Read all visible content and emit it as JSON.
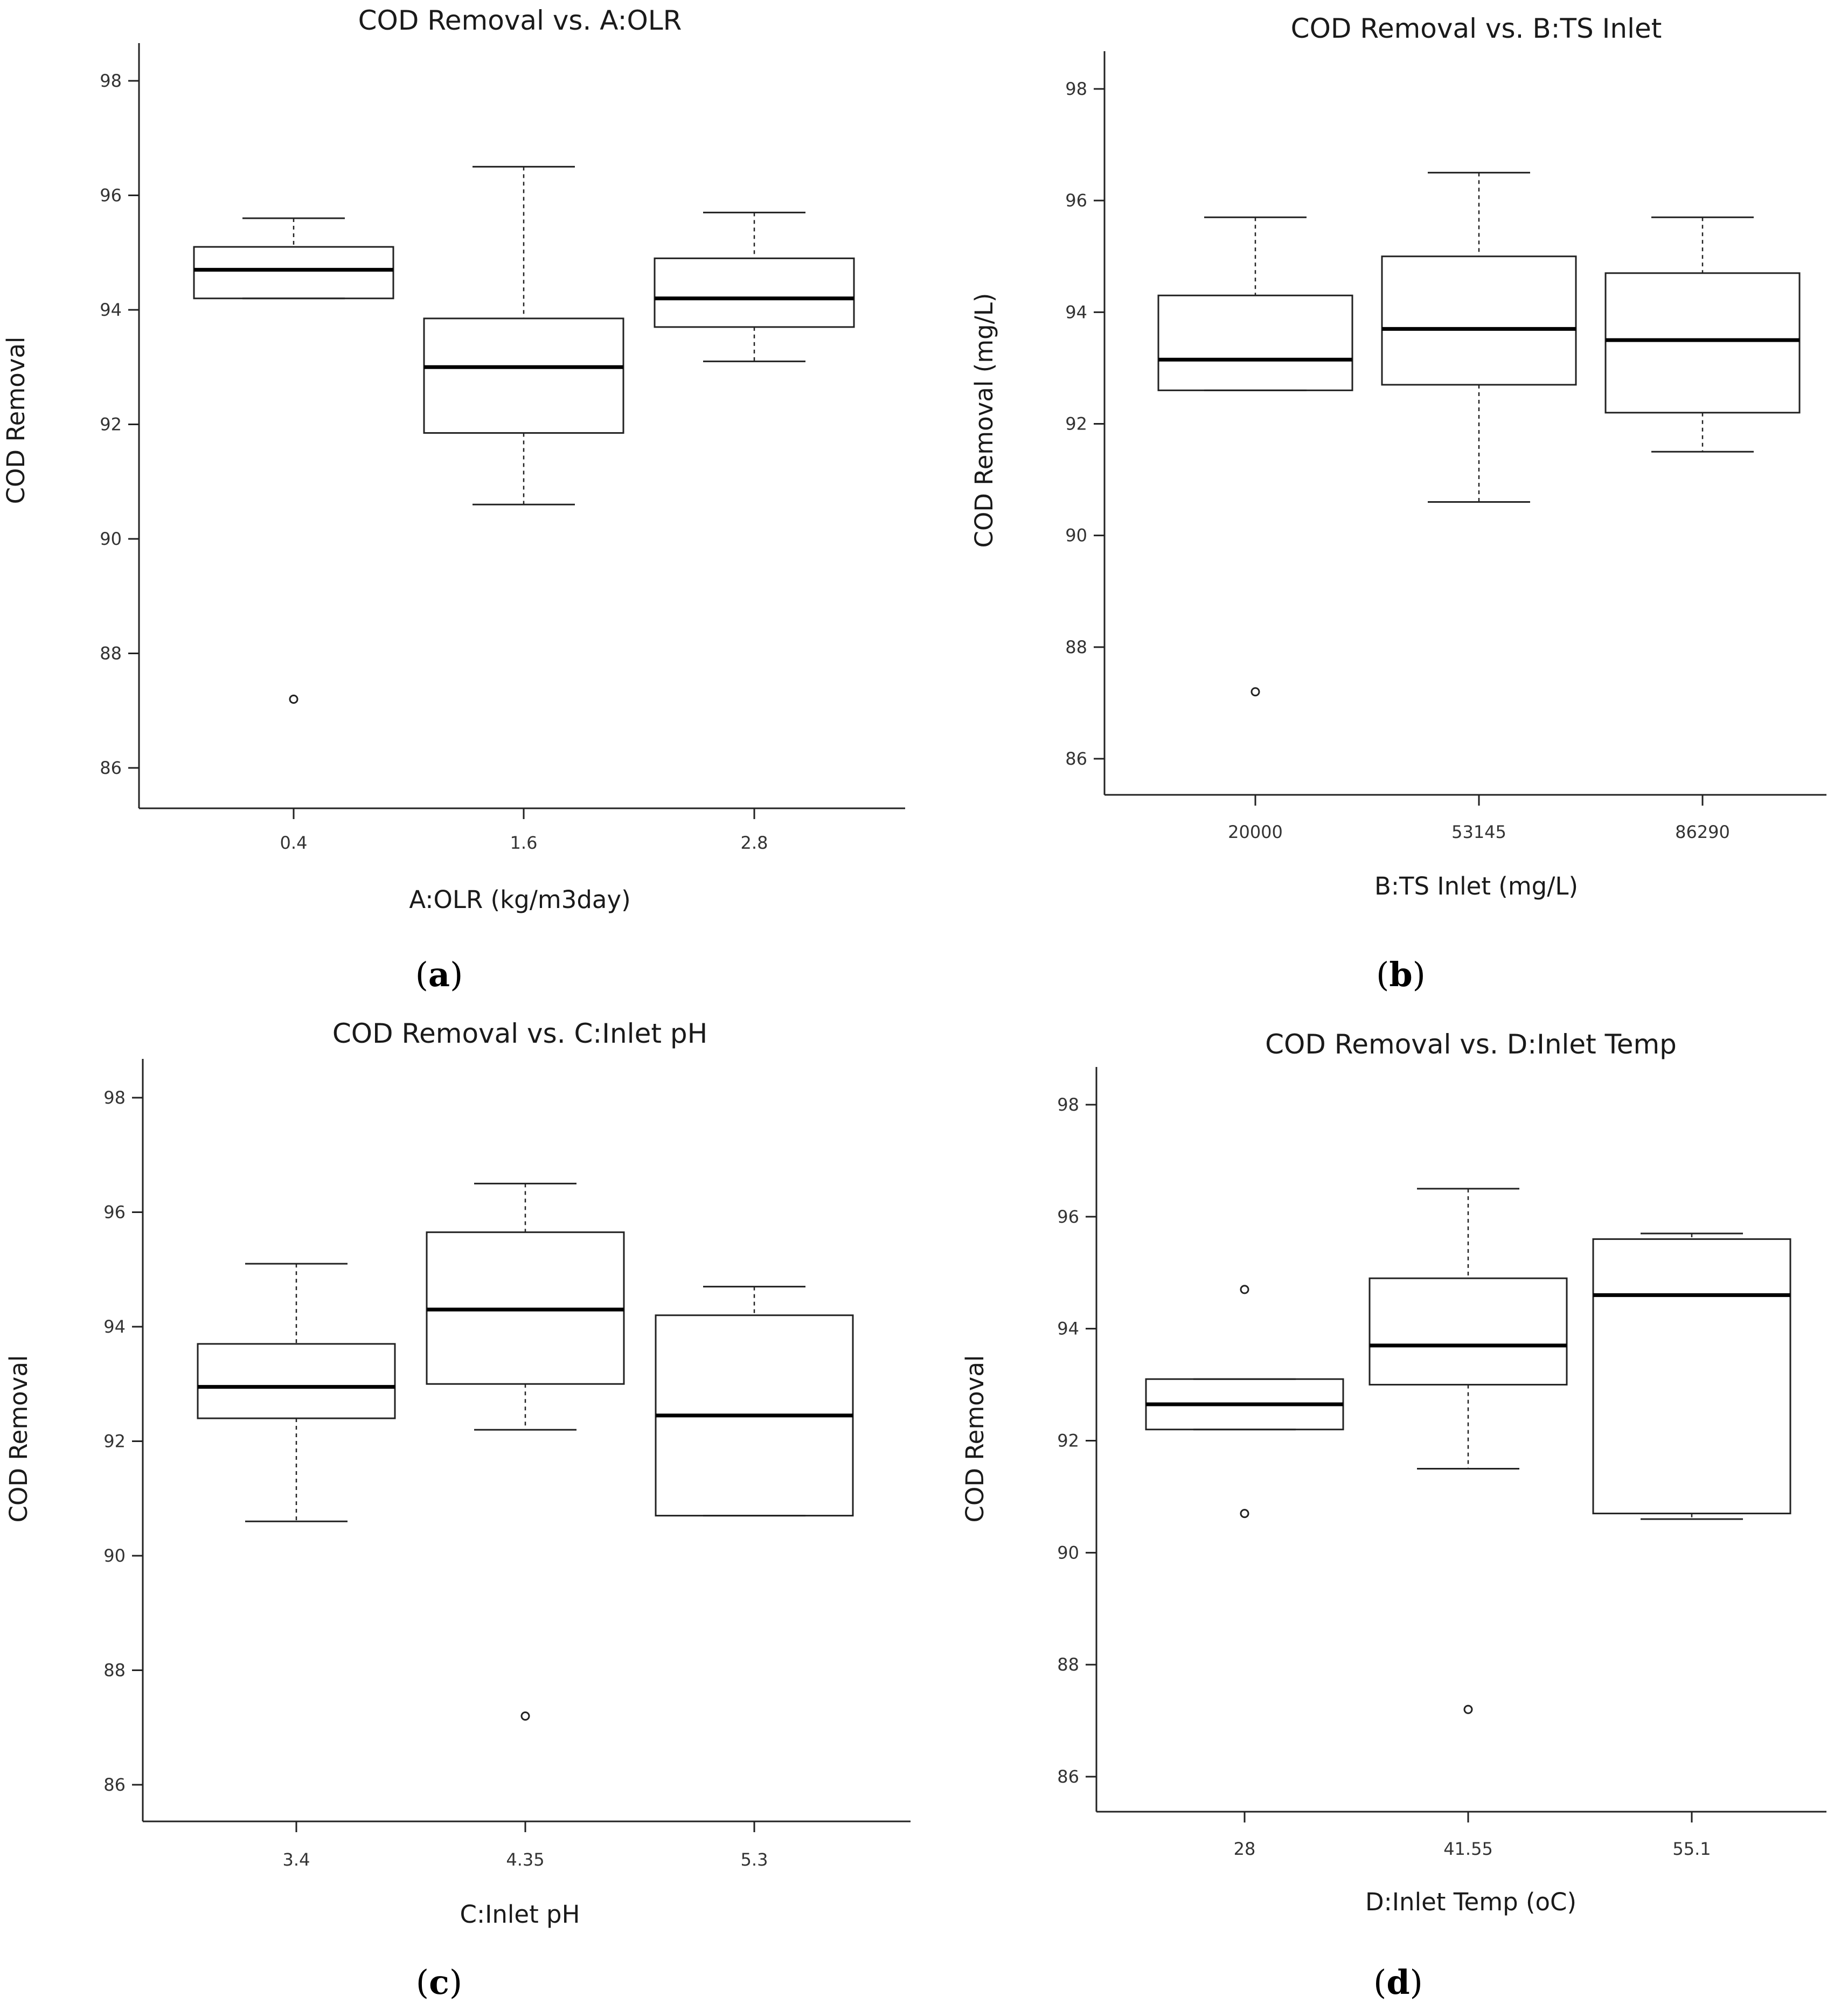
{
  "figure": {
    "colors": {
      "ink": "#222222",
      "text": "#1a1a1a",
      "background": "#ffffff"
    }
  },
  "chart_data": [
    {
      "type": "box",
      "panel_letter": "a",
      "title": "COD Removal vs. A:OLR",
      "xlabel": "A:OLR (kg/m3day)",
      "ylabel": "COD Removal",
      "ylim": [
        85,
        98.7
      ],
      "yticks": [
        86,
        88,
        90,
        92,
        94,
        96,
        98
      ],
      "grid": false,
      "categories": [
        "0.4",
        "1.6",
        "2.8"
      ],
      "boxes": [
        {
          "whisker_low": 94.2,
          "q1": 94.2,
          "median": 94.7,
          "q3": 95.1,
          "whisker_high": 95.6,
          "outliers": [
            87.2
          ]
        },
        {
          "whisker_low": 90.6,
          "q1": 91.85,
          "median": 93.0,
          "q3": 93.85,
          "whisker_high": 96.5,
          "outliers": []
        },
        {
          "whisker_low": 93.1,
          "q1": 93.7,
          "median": 94.2,
          "q3": 94.9,
          "whisker_high": 95.7,
          "outliers": []
        }
      ]
    },
    {
      "type": "box",
      "panel_letter": "b",
      "title": "COD Removal vs. B:TS Inlet",
      "xlabel": "B:TS Inlet (mg/L)",
      "ylabel": "COD Removal (mg/L)",
      "ylim": [
        85.3,
        98.9
      ],
      "yticks": [
        86,
        88,
        90,
        92,
        94,
        96,
        98
      ],
      "grid": false,
      "categories": [
        "20000",
        "53145",
        "86290"
      ],
      "boxes": [
        {
          "whisker_low": 92.6,
          "q1": 92.6,
          "median": 93.15,
          "q3": 94.3,
          "whisker_high": 95.7,
          "outliers": [
            87.2
          ]
        },
        {
          "whisker_low": 90.6,
          "q1": 92.7,
          "median": 93.7,
          "q3": 95.0,
          "whisker_high": 96.5,
          "outliers": []
        },
        {
          "whisker_low": 91.5,
          "q1": 92.2,
          "median": 93.5,
          "q3": 94.7,
          "whisker_high": 95.7,
          "outliers": []
        }
      ]
    },
    {
      "type": "box",
      "panel_letter": "c",
      "title": "COD Removal vs. C:Inlet pH",
      "xlabel": "C:Inlet pH",
      "ylabel": "COD Removal",
      "ylim": [
        85.3,
        98.9
      ],
      "yticks": [
        86,
        88,
        90,
        92,
        94,
        96,
        98
      ],
      "grid": false,
      "categories": [
        "3.4",
        "4.35",
        "5.3"
      ],
      "boxes": [
        {
          "whisker_low": 90.6,
          "q1": 92.4,
          "median": 92.95,
          "q3": 93.7,
          "whisker_high": 95.1,
          "outliers": []
        },
        {
          "whisker_low": 92.2,
          "q1": 93.0,
          "median": 94.3,
          "q3": 95.65,
          "whisker_high": 96.5,
          "outliers": [
            87.2
          ]
        },
        {
          "whisker_low": 90.7,
          "q1": 90.7,
          "median": 92.45,
          "q3": 94.2,
          "whisker_high": 94.7,
          "outliers": []
        }
      ]
    },
    {
      "type": "box",
      "panel_letter": "d",
      "title": "COD Removal vs. D:Inlet Temp",
      "xlabel": "D:Inlet Temp (oC)",
      "ylabel": "COD Removal",
      "ylim": [
        85.4,
        98.7
      ],
      "yticks": [
        86,
        88,
        90,
        92,
        94,
        96,
        98
      ],
      "grid": false,
      "categories": [
        "28",
        "41.55",
        "55.1"
      ],
      "boxes": [
        {
          "whisker_low": 92.2,
          "q1": 92.2,
          "median": 92.65,
          "q3": 93.1,
          "whisker_high": 93.1,
          "outliers": [
            90.7,
            94.7
          ]
        },
        {
          "whisker_low": 91.5,
          "q1": 93.0,
          "median": 93.7,
          "q3": 94.9,
          "whisker_high": 96.5,
          "outliers": [
            87.2
          ]
        },
        {
          "whisker_low": 90.6,
          "q1": 90.7,
          "median": 94.6,
          "q3": 95.6,
          "whisker_high": 95.7,
          "outliers": []
        }
      ]
    }
  ]
}
